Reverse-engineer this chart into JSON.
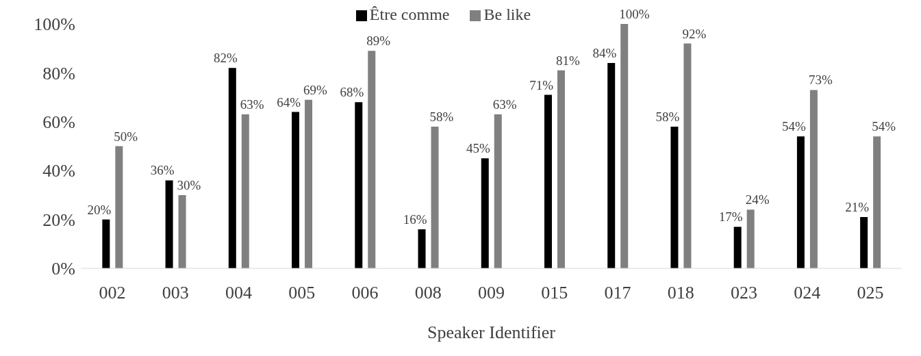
{
  "chart_data": {
    "type": "bar",
    "xlabel": "Speaker Identifier",
    "categories": [
      "002",
      "003",
      "004",
      "005",
      "006",
      "008",
      "009",
      "015",
      "017",
      "018",
      "023",
      "024",
      "025"
    ],
    "series": [
      {
        "name": "Être comme",
        "color": "#000000",
        "values": [
          20,
          36,
          82,
          64,
          68,
          16,
          45,
          71,
          84,
          58,
          17,
          54,
          21
        ],
        "value_labels": [
          "20%",
          "36%",
          "82%",
          "64%",
          "68%",
          "16%",
          "45%",
          "71%",
          "84%",
          "58%",
          "17%",
          "54%",
          "21%"
        ]
      },
      {
        "name": "Be like",
        "color": "#808080",
        "values": [
          50,
          30,
          63,
          69,
          89,
          58,
          63,
          81,
          100,
          92,
          24,
          73,
          54
        ],
        "value_labels": [
          "50%",
          "30%",
          "63%",
          "69%",
          "89%",
          "58%",
          "63%",
          "81%",
          "100%",
          "92%",
          "24%",
          "73%",
          "54%"
        ]
      }
    ],
    "ylim": [
      0,
      100
    ],
    "yticks": [
      {
        "value": 0,
        "label": "0%"
      },
      {
        "value": 20,
        "label": "20%"
      },
      {
        "value": 40,
        "label": "40%"
      },
      {
        "value": 60,
        "label": "60%"
      },
      {
        "value": 80,
        "label": "80%"
      },
      {
        "value": 100,
        "label": "100%"
      }
    ],
    "grid": false,
    "legend": "top"
  }
}
